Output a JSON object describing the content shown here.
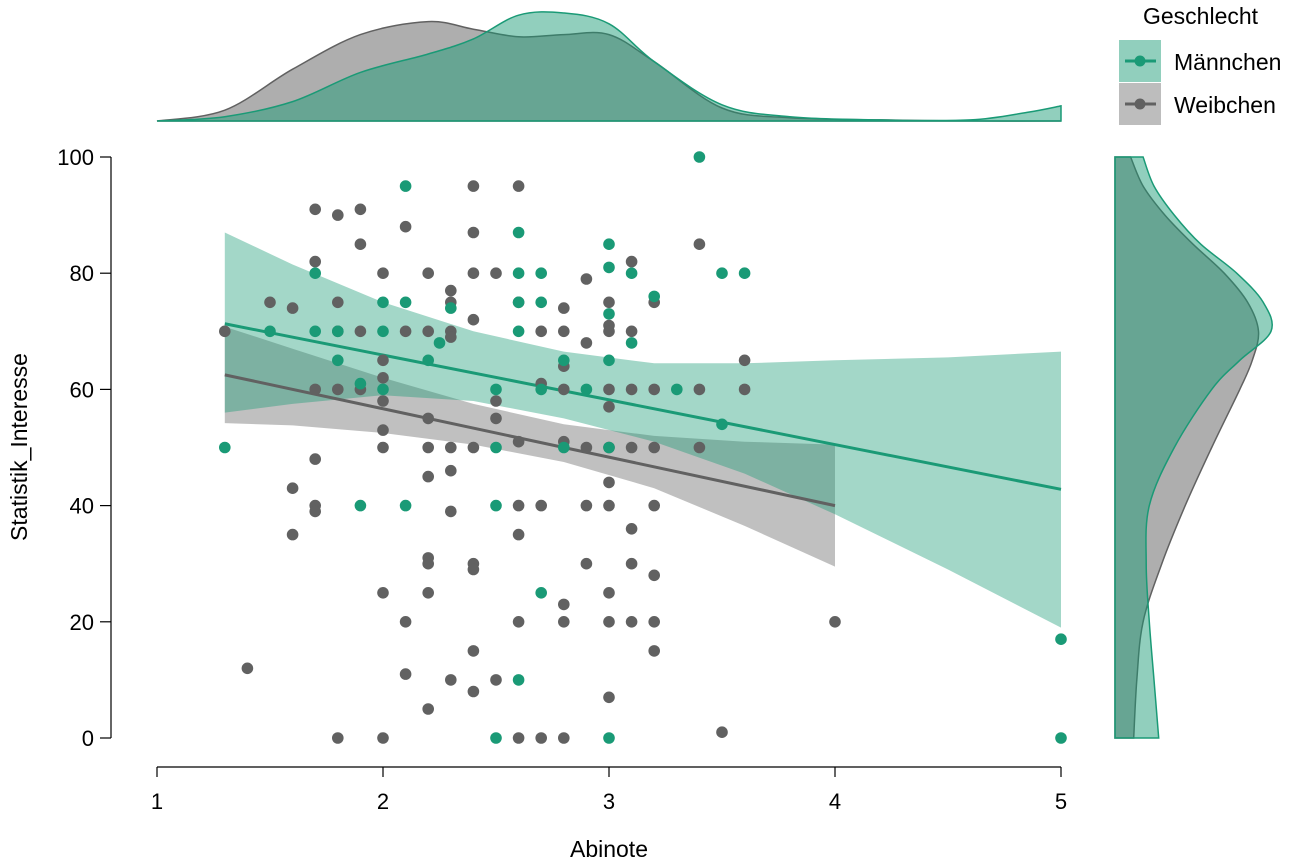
{
  "colors": {
    "male": "#1a9a76",
    "male_fill": "#1a9a76",
    "female": "#616161",
    "female_fill": "#9a9a9a",
    "axis": "#000000"
  },
  "chart_data": {
    "type": "scatter",
    "xlabel": "Abinote",
    "ylabel": "Statistik_Interesse",
    "xlim": [
      1,
      5
    ],
    "ylim": [
      0,
      100
    ],
    "x_ticks": [
      "1",
      "2",
      "3",
      "4",
      "5"
    ],
    "y_ticks": [
      "0",
      "20",
      "40",
      "60",
      "80",
      "100"
    ],
    "grid": false,
    "legend": {
      "title": "Geschlecht",
      "placement": "top-right",
      "items": [
        "Männchen",
        "Weibchen"
      ]
    },
    "series": [
      {
        "name": "Männchen",
        "color": "#1a9a76",
        "points": [
          [
            1.3,
            50
          ],
          [
            1.5,
            70
          ],
          [
            1.7,
            70
          ],
          [
            1.7,
            80
          ],
          [
            1.8,
            65
          ],
          [
            1.8,
            70
          ],
          [
            1.9,
            40
          ],
          [
            1.9,
            61
          ],
          [
            2.0,
            75
          ],
          [
            2.0,
            70
          ],
          [
            2.0,
            60
          ],
          [
            2.1,
            95
          ],
          [
            2.1,
            75
          ],
          [
            2.1,
            40
          ],
          [
            2.2,
            65
          ],
          [
            2.25,
            68
          ],
          [
            2.3,
            74
          ],
          [
            2.5,
            60
          ],
          [
            2.5,
            50
          ],
          [
            2.5,
            40
          ],
          [
            2.5,
            0
          ],
          [
            2.6,
            87
          ],
          [
            2.6,
            80
          ],
          [
            2.6,
            75
          ],
          [
            2.6,
            70
          ],
          [
            2.6,
            10
          ],
          [
            2.7,
            80
          ],
          [
            2.7,
            75
          ],
          [
            2.7,
            60
          ],
          [
            2.7,
            25
          ],
          [
            2.8,
            65
          ],
          [
            2.8,
            50
          ],
          [
            2.9,
            60
          ],
          [
            3.0,
            85
          ],
          [
            3.0,
            81
          ],
          [
            3.0,
            73
          ],
          [
            3.0,
            65
          ],
          [
            3.0,
            50
          ],
          [
            3.0,
            0
          ],
          [
            3.1,
            80
          ],
          [
            3.1,
            68
          ],
          [
            3.2,
            76
          ],
          [
            3.3,
            60
          ],
          [
            3.4,
            100
          ],
          [
            3.5,
            80
          ],
          [
            3.5,
            54
          ],
          [
            3.6,
            80
          ],
          [
            5.0,
            17
          ],
          [
            5.0,
            0
          ]
        ],
        "fit_line": {
          "x": [
            1.3,
            5.0
          ],
          "y": [
            71.3,
            42.8
          ]
        },
        "confidence_band": {
          "x": [
            1.3,
            1.6,
            2.0,
            2.4,
            2.8,
            3.2,
            3.6,
            4.0,
            4.5,
            5.0
          ],
          "lower": [
            56.0,
            57.5,
            59.0,
            58.0,
            55.0,
            51.0,
            45.5,
            38.5,
            29.0,
            19.0
          ],
          "upper": [
            87.0,
            81.5,
            75.0,
            70.0,
            66.5,
            64.5,
            64.5,
            65.0,
            65.5,
            66.5
          ]
        },
        "density_x": {
          "x": [
            1.0,
            1.3,
            1.6,
            1.9,
            2.2,
            2.4,
            2.6,
            2.8,
            3.0,
            3.2,
            3.5,
            3.8,
            4.2,
            4.6,
            4.85,
            5.0
          ],
          "density": [
            0.0,
            0.04,
            0.18,
            0.45,
            0.62,
            0.76,
            0.98,
            1.0,
            0.9,
            0.55,
            0.15,
            0.04,
            0.01,
            0.01,
            0.08,
            0.14
          ]
        },
        "density_y": {
          "y": [
            0,
            10,
            20,
            30,
            40,
            50,
            60,
            65,
            70,
            75,
            80,
            85,
            90,
            95,
            100
          ],
          "density": [
            0.28,
            0.25,
            0.22,
            0.2,
            0.22,
            0.38,
            0.62,
            0.8,
            1.0,
            0.95,
            0.78,
            0.55,
            0.38,
            0.25,
            0.18
          ]
        }
      },
      {
        "name": "Weibchen",
        "color": "#616161",
        "points": [
          [
            1.3,
            70
          ],
          [
            1.4,
            12
          ],
          [
            1.5,
            75
          ],
          [
            1.6,
            74
          ],
          [
            1.6,
            43
          ],
          [
            1.6,
            35
          ],
          [
            1.7,
            91
          ],
          [
            1.7,
            82
          ],
          [
            1.7,
            60
          ],
          [
            1.7,
            48
          ],
          [
            1.7,
            40
          ],
          [
            1.7,
            39
          ],
          [
            1.8,
            90
          ],
          [
            1.8,
            75
          ],
          [
            1.8,
            70
          ],
          [
            1.8,
            60
          ],
          [
            1.8,
            0
          ],
          [
            1.9,
            91
          ],
          [
            1.9,
            85
          ],
          [
            1.9,
            70
          ],
          [
            1.9,
            60
          ],
          [
            2.0,
            80
          ],
          [
            2.0,
            65
          ],
          [
            2.0,
            62
          ],
          [
            2.0,
            58
          ],
          [
            2.0,
            53
          ],
          [
            2.0,
            50
          ],
          [
            2.0,
            25
          ],
          [
            2.0,
            0
          ],
          [
            2.1,
            88
          ],
          [
            2.1,
            70
          ],
          [
            2.1,
            20
          ],
          [
            2.1,
            11
          ],
          [
            2.2,
            80
          ],
          [
            2.2,
            70
          ],
          [
            2.2,
            55
          ],
          [
            2.2,
            50
          ],
          [
            2.2,
            45
          ],
          [
            2.2,
            31
          ],
          [
            2.2,
            30
          ],
          [
            2.2,
            25
          ],
          [
            2.2,
            5
          ],
          [
            2.3,
            77
          ],
          [
            2.3,
            75
          ],
          [
            2.3,
            70
          ],
          [
            2.3,
            69
          ],
          [
            2.3,
            50
          ],
          [
            2.3,
            46
          ],
          [
            2.3,
            39
          ],
          [
            2.3,
            10
          ],
          [
            2.4,
            95
          ],
          [
            2.4,
            87
          ],
          [
            2.4,
            80
          ],
          [
            2.4,
            72
          ],
          [
            2.4,
            50
          ],
          [
            2.4,
            30
          ],
          [
            2.4,
            29
          ],
          [
            2.4,
            15
          ],
          [
            2.4,
            8
          ],
          [
            2.5,
            80
          ],
          [
            2.5,
            58
          ],
          [
            2.5,
            55
          ],
          [
            2.5,
            10
          ],
          [
            2.6,
            95
          ],
          [
            2.6,
            75
          ],
          [
            2.6,
            51
          ],
          [
            2.6,
            40
          ],
          [
            2.6,
            35
          ],
          [
            2.6,
            20
          ],
          [
            2.6,
            0
          ],
          [
            2.7,
            70
          ],
          [
            2.7,
            61
          ],
          [
            2.7,
            40
          ],
          [
            2.7,
            0
          ],
          [
            2.8,
            74
          ],
          [
            2.8,
            70
          ],
          [
            2.8,
            64
          ],
          [
            2.8,
            60
          ],
          [
            2.8,
            51
          ],
          [
            2.8,
            23
          ],
          [
            2.8,
            20
          ],
          [
            2.8,
            0
          ],
          [
            2.9,
            79
          ],
          [
            2.9,
            68
          ],
          [
            2.9,
            50
          ],
          [
            2.9,
            40
          ],
          [
            2.9,
            30
          ],
          [
            3.0,
            75
          ],
          [
            3.0,
            71
          ],
          [
            3.0,
            70
          ],
          [
            3.0,
            60
          ],
          [
            3.0,
            57
          ],
          [
            3.0,
            50
          ],
          [
            3.0,
            44
          ],
          [
            3.0,
            40
          ],
          [
            3.0,
            25
          ],
          [
            3.0,
            20
          ],
          [
            3.0,
            7
          ],
          [
            3.1,
            82
          ],
          [
            3.1,
            70
          ],
          [
            3.1,
            60
          ],
          [
            3.1,
            50
          ],
          [
            3.1,
            36
          ],
          [
            3.1,
            30
          ],
          [
            3.1,
            20
          ],
          [
            3.2,
            75
          ],
          [
            3.2,
            60
          ],
          [
            3.2,
            50
          ],
          [
            3.2,
            40
          ],
          [
            3.2,
            28
          ],
          [
            3.2,
            20
          ],
          [
            3.2,
            15
          ],
          [
            3.4,
            85
          ],
          [
            3.4,
            60
          ],
          [
            3.4,
            50
          ],
          [
            3.5,
            1
          ],
          [
            3.6,
            65
          ],
          [
            3.6,
            60
          ],
          [
            4.0,
            20
          ]
        ],
        "fit_line": {
          "x": [
            1.3,
            4.0
          ],
          "y": [
            62.5,
            40.0
          ]
        },
        "confidence_band": {
          "x": [
            1.3,
            1.6,
            2.0,
            2.4,
            2.8,
            3.2,
            3.6,
            4.0
          ],
          "lower": [
            54.2,
            53.8,
            52.5,
            50.5,
            47.5,
            43.0,
            36.5,
            29.5
          ],
          "upper": [
            70.8,
            67.0,
            62.0,
            57.5,
            54.0,
            52.0,
            51.0,
            50.5
          ]
        },
        "density_x": {
          "x": [
            1.0,
            1.3,
            1.6,
            1.9,
            2.2,
            2.4,
            2.6,
            2.8,
            3.0,
            3.2,
            3.5,
            3.8,
            4.2,
            4.6,
            5.0
          ],
          "density": [
            0.0,
            0.1,
            0.48,
            0.8,
            0.92,
            0.85,
            0.78,
            0.8,
            0.8,
            0.55,
            0.12,
            0.03,
            0.01,
            0.0,
            0.0
          ]
        },
        "density_y": {
          "y": [
            0,
            10,
            20,
            30,
            40,
            50,
            60,
            65,
            70,
            75,
            80,
            85,
            90,
            95,
            100
          ],
          "density": [
            0.12,
            0.14,
            0.18,
            0.3,
            0.45,
            0.62,
            0.8,
            0.88,
            0.92,
            0.85,
            0.7,
            0.5,
            0.32,
            0.18,
            0.1
          ]
        }
      }
    ]
  }
}
